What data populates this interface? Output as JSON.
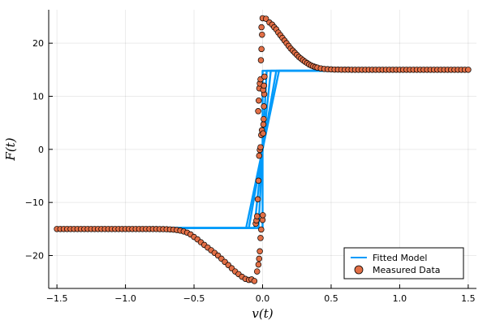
{
  "chart_data": {
    "type": "scatter",
    "title": "",
    "xlabel": "v(t)",
    "ylabel": "F(t)",
    "xlim": [
      -1.56,
      1.56
    ],
    "ylim": [
      -26.2,
      26.3
    ],
    "xticks": [
      -1.5,
      -1.0,
      -0.5,
      0.0,
      0.5,
      1.0,
      1.5
    ],
    "xtick_labels": [
      "−1.5",
      "−1.0",
      "−0.5",
      "0.0",
      "0.5",
      "1.0",
      "1.5"
    ],
    "yticks": [
      -20,
      -10,
      0,
      10,
      20
    ],
    "ytick_labels": [
      "−20",
      "−10",
      "0",
      "10",
      "20"
    ],
    "grid": true,
    "legend_position": "bottom-right",
    "series": [
      {
        "name": "Fitted Model",
        "kind": "line",
        "color": "#009AFA",
        "segments": [
          {
            "x": [
              -1.5,
              -0.12,
              0.12,
              1.5
            ],
            "y": [
              -14.8,
              -14.8,
              14.8,
              14.8
            ]
          },
          {
            "x": [
              -1.5,
              -0.1,
              0.1,
              1.5
            ],
            "y": [
              -14.8,
              -14.8,
              14.8,
              14.8
            ]
          },
          {
            "x": [
              -1.5,
              -0.06,
              0.06,
              1.5
            ],
            "y": [
              -14.8,
              -14.8,
              14.8,
              14.8
            ]
          },
          {
            "x": [
              -1.5,
              -0.03,
              0.03,
              1.5
            ],
            "y": [
              -14.8,
              -14.8,
              14.8,
              14.8
            ]
          },
          {
            "x": [
              -1.5,
              0.0,
              0.0,
              1.5
            ],
            "y": [
              -14.8,
              -14.8,
              14.8,
              14.8
            ]
          }
        ]
      },
      {
        "name": "Measured Data",
        "kind": "scatter",
        "color": "#E26F46",
        "points": [
          [
            -1.5,
            -15.0
          ],
          [
            -1.475,
            -15.0
          ],
          [
            -1.45,
            -15.0
          ],
          [
            -1.425,
            -15.0
          ],
          [
            -1.4,
            -15.0
          ],
          [
            -1.375,
            -15.0
          ],
          [
            -1.35,
            -15.0
          ],
          [
            -1.325,
            -15.0
          ],
          [
            -1.3,
            -15.0
          ],
          [
            -1.275,
            -15.0
          ],
          [
            -1.25,
            -15.0
          ],
          [
            -1.225,
            -15.0
          ],
          [
            -1.2,
            -15.0
          ],
          [
            -1.175,
            -15.0
          ],
          [
            -1.15,
            -15.0
          ],
          [
            -1.125,
            -15.0
          ],
          [
            -1.1,
            -15.0
          ],
          [
            -1.075,
            -15.0
          ],
          [
            -1.05,
            -15.0
          ],
          [
            -1.025,
            -15.0
          ],
          [
            -1.0,
            -15.0
          ],
          [
            -0.975,
            -15.0
          ],
          [
            -0.95,
            -15.0
          ],
          [
            -0.925,
            -15.0
          ],
          [
            -0.9,
            -15.0
          ],
          [
            -0.875,
            -15.0
          ],
          [
            -0.85,
            -15.0
          ],
          [
            -0.825,
            -15.0
          ],
          [
            -0.8,
            -15.01
          ],
          [
            -0.775,
            -15.01
          ],
          [
            -0.75,
            -15.02
          ],
          [
            -0.725,
            -15.03
          ],
          [
            -0.7,
            -15.05
          ],
          [
            -0.675,
            -15.08
          ],
          [
            -0.65,
            -15.12
          ],
          [
            -0.625,
            -15.19
          ],
          [
            -0.6,
            -15.3
          ],
          [
            -0.575,
            -15.46
          ],
          [
            -0.55,
            -15.7
          ],
          [
            -0.525,
            -16.03
          ],
          [
            -0.5,
            -16.5
          ],
          [
            -0.475,
            -16.95
          ],
          [
            -0.45,
            -17.5
          ],
          [
            -0.425,
            -18.0
          ],
          [
            -0.4,
            -18.5
          ],
          [
            -0.375,
            -19.0
          ],
          [
            -0.35,
            -19.5
          ],
          [
            -0.325,
            -20.0
          ],
          [
            -0.3,
            -20.6
          ],
          [
            -0.275,
            -21.2
          ],
          [
            -0.25,
            -21.8
          ],
          [
            -0.225,
            -22.4
          ],
          [
            -0.2,
            -23.0
          ],
          [
            -0.175,
            -23.5
          ],
          [
            -0.15,
            -24.0
          ],
          [
            -0.125,
            -24.4
          ],
          [
            -0.1,
            -24.6
          ],
          [
            -0.08,
            -24.5
          ],
          [
            -0.06,
            -24.8
          ],
          [
            -0.04,
            -23.0
          ],
          [
            -0.03,
            -21.7
          ],
          [
            -0.025,
            -20.6
          ],
          [
            -0.02,
            -19.2
          ],
          [
            -0.015,
            -16.7
          ],
          [
            -0.01,
            -15.1
          ],
          [
            -0.05,
            -14.0
          ],
          [
            -0.045,
            -13.4
          ],
          [
            -0.04,
            -12.6
          ],
          [
            -0.035,
            -9.4
          ],
          [
            -0.03,
            -5.9
          ],
          [
            -0.025,
            -1.2
          ],
          [
            -0.02,
            -0.1
          ],
          [
            -0.015,
            0.4
          ],
          [
            -0.01,
            2.7
          ],
          [
            -0.005,
            3.6
          ],
          [
            -0.032,
            7.2
          ],
          [
            -0.028,
            9.2
          ],
          [
            -0.024,
            11.5
          ],
          [
            -0.02,
            12.4
          ],
          [
            -0.015,
            13.2
          ],
          [
            0.0,
            -13.3
          ],
          [
            0.002,
            -12.4
          ],
          [
            0.004,
            3.0
          ],
          [
            0.006,
            4.7
          ],
          [
            0.008,
            5.7
          ],
          [
            0.01,
            8.1
          ],
          [
            0.012,
            10.4
          ],
          [
            0.004,
            11.2
          ],
          [
            0.01,
            12.0
          ],
          [
            0.014,
            13.7
          ],
          [
            -0.012,
            16.8
          ],
          [
            -0.008,
            18.9
          ],
          [
            -0.004,
            21.6
          ],
          [
            -0.008,
            23.0
          ],
          [
            0.0,
            24.7
          ],
          [
            0.025,
            24.6
          ],
          [
            0.05,
            23.9
          ],
          [
            0.07,
            23.5
          ],
          [
            0.085,
            23.0
          ],
          [
            0.1,
            22.6
          ],
          [
            0.115,
            22.0
          ],
          [
            0.13,
            21.5
          ],
          [
            0.145,
            21.0
          ],
          [
            0.16,
            20.5
          ],
          [
            0.175,
            20.0
          ],
          [
            0.19,
            19.5
          ],
          [
            0.205,
            19.0
          ],
          [
            0.22,
            18.6
          ],
          [
            0.235,
            18.2
          ],
          [
            0.25,
            17.8
          ],
          [
            0.265,
            17.4
          ],
          [
            0.28,
            17.1
          ],
          [
            0.295,
            16.8
          ],
          [
            0.31,
            16.5
          ],
          [
            0.325,
            16.25
          ],
          [
            0.34,
            16.0
          ],
          [
            0.355,
            15.8
          ],
          [
            0.37,
            15.65
          ],
          [
            0.385,
            15.5
          ],
          [
            0.4,
            15.4
          ],
          [
            0.425,
            15.25
          ],
          [
            0.45,
            15.15
          ],
          [
            0.475,
            15.1
          ],
          [
            0.5,
            15.07
          ],
          [
            0.525,
            15.04
          ],
          [
            0.55,
            15.03
          ],
          [
            0.575,
            15.02
          ],
          [
            0.6,
            15.01
          ],
          [
            0.625,
            15.01
          ],
          [
            0.65,
            15.0
          ],
          [
            0.675,
            15.0
          ],
          [
            0.7,
            15.0
          ],
          [
            0.725,
            15.0
          ],
          [
            0.75,
            15.0
          ],
          [
            0.775,
            15.0
          ],
          [
            0.8,
            15.0
          ],
          [
            0.825,
            15.0
          ],
          [
            0.85,
            15.0
          ],
          [
            0.875,
            15.0
          ],
          [
            0.9,
            15.0
          ],
          [
            0.925,
            15.0
          ],
          [
            0.95,
            15.0
          ],
          [
            0.975,
            15.0
          ],
          [
            1.0,
            15.0
          ],
          [
            1.025,
            15.0
          ],
          [
            1.05,
            15.0
          ],
          [
            1.075,
            15.0
          ],
          [
            1.1,
            15.0
          ],
          [
            1.125,
            15.0
          ],
          [
            1.15,
            15.0
          ],
          [
            1.175,
            15.0
          ],
          [
            1.2,
            15.0
          ],
          [
            1.225,
            15.0
          ],
          [
            1.25,
            15.0
          ],
          [
            1.275,
            15.0
          ],
          [
            1.3,
            15.0
          ],
          [
            1.325,
            15.0
          ],
          [
            1.35,
            15.0
          ],
          [
            1.375,
            15.0
          ],
          [
            1.4,
            15.0
          ],
          [
            1.425,
            15.0
          ],
          [
            1.45,
            15.0
          ],
          [
            1.475,
            15.0
          ],
          [
            1.5,
            15.0
          ]
        ]
      }
    ]
  }
}
